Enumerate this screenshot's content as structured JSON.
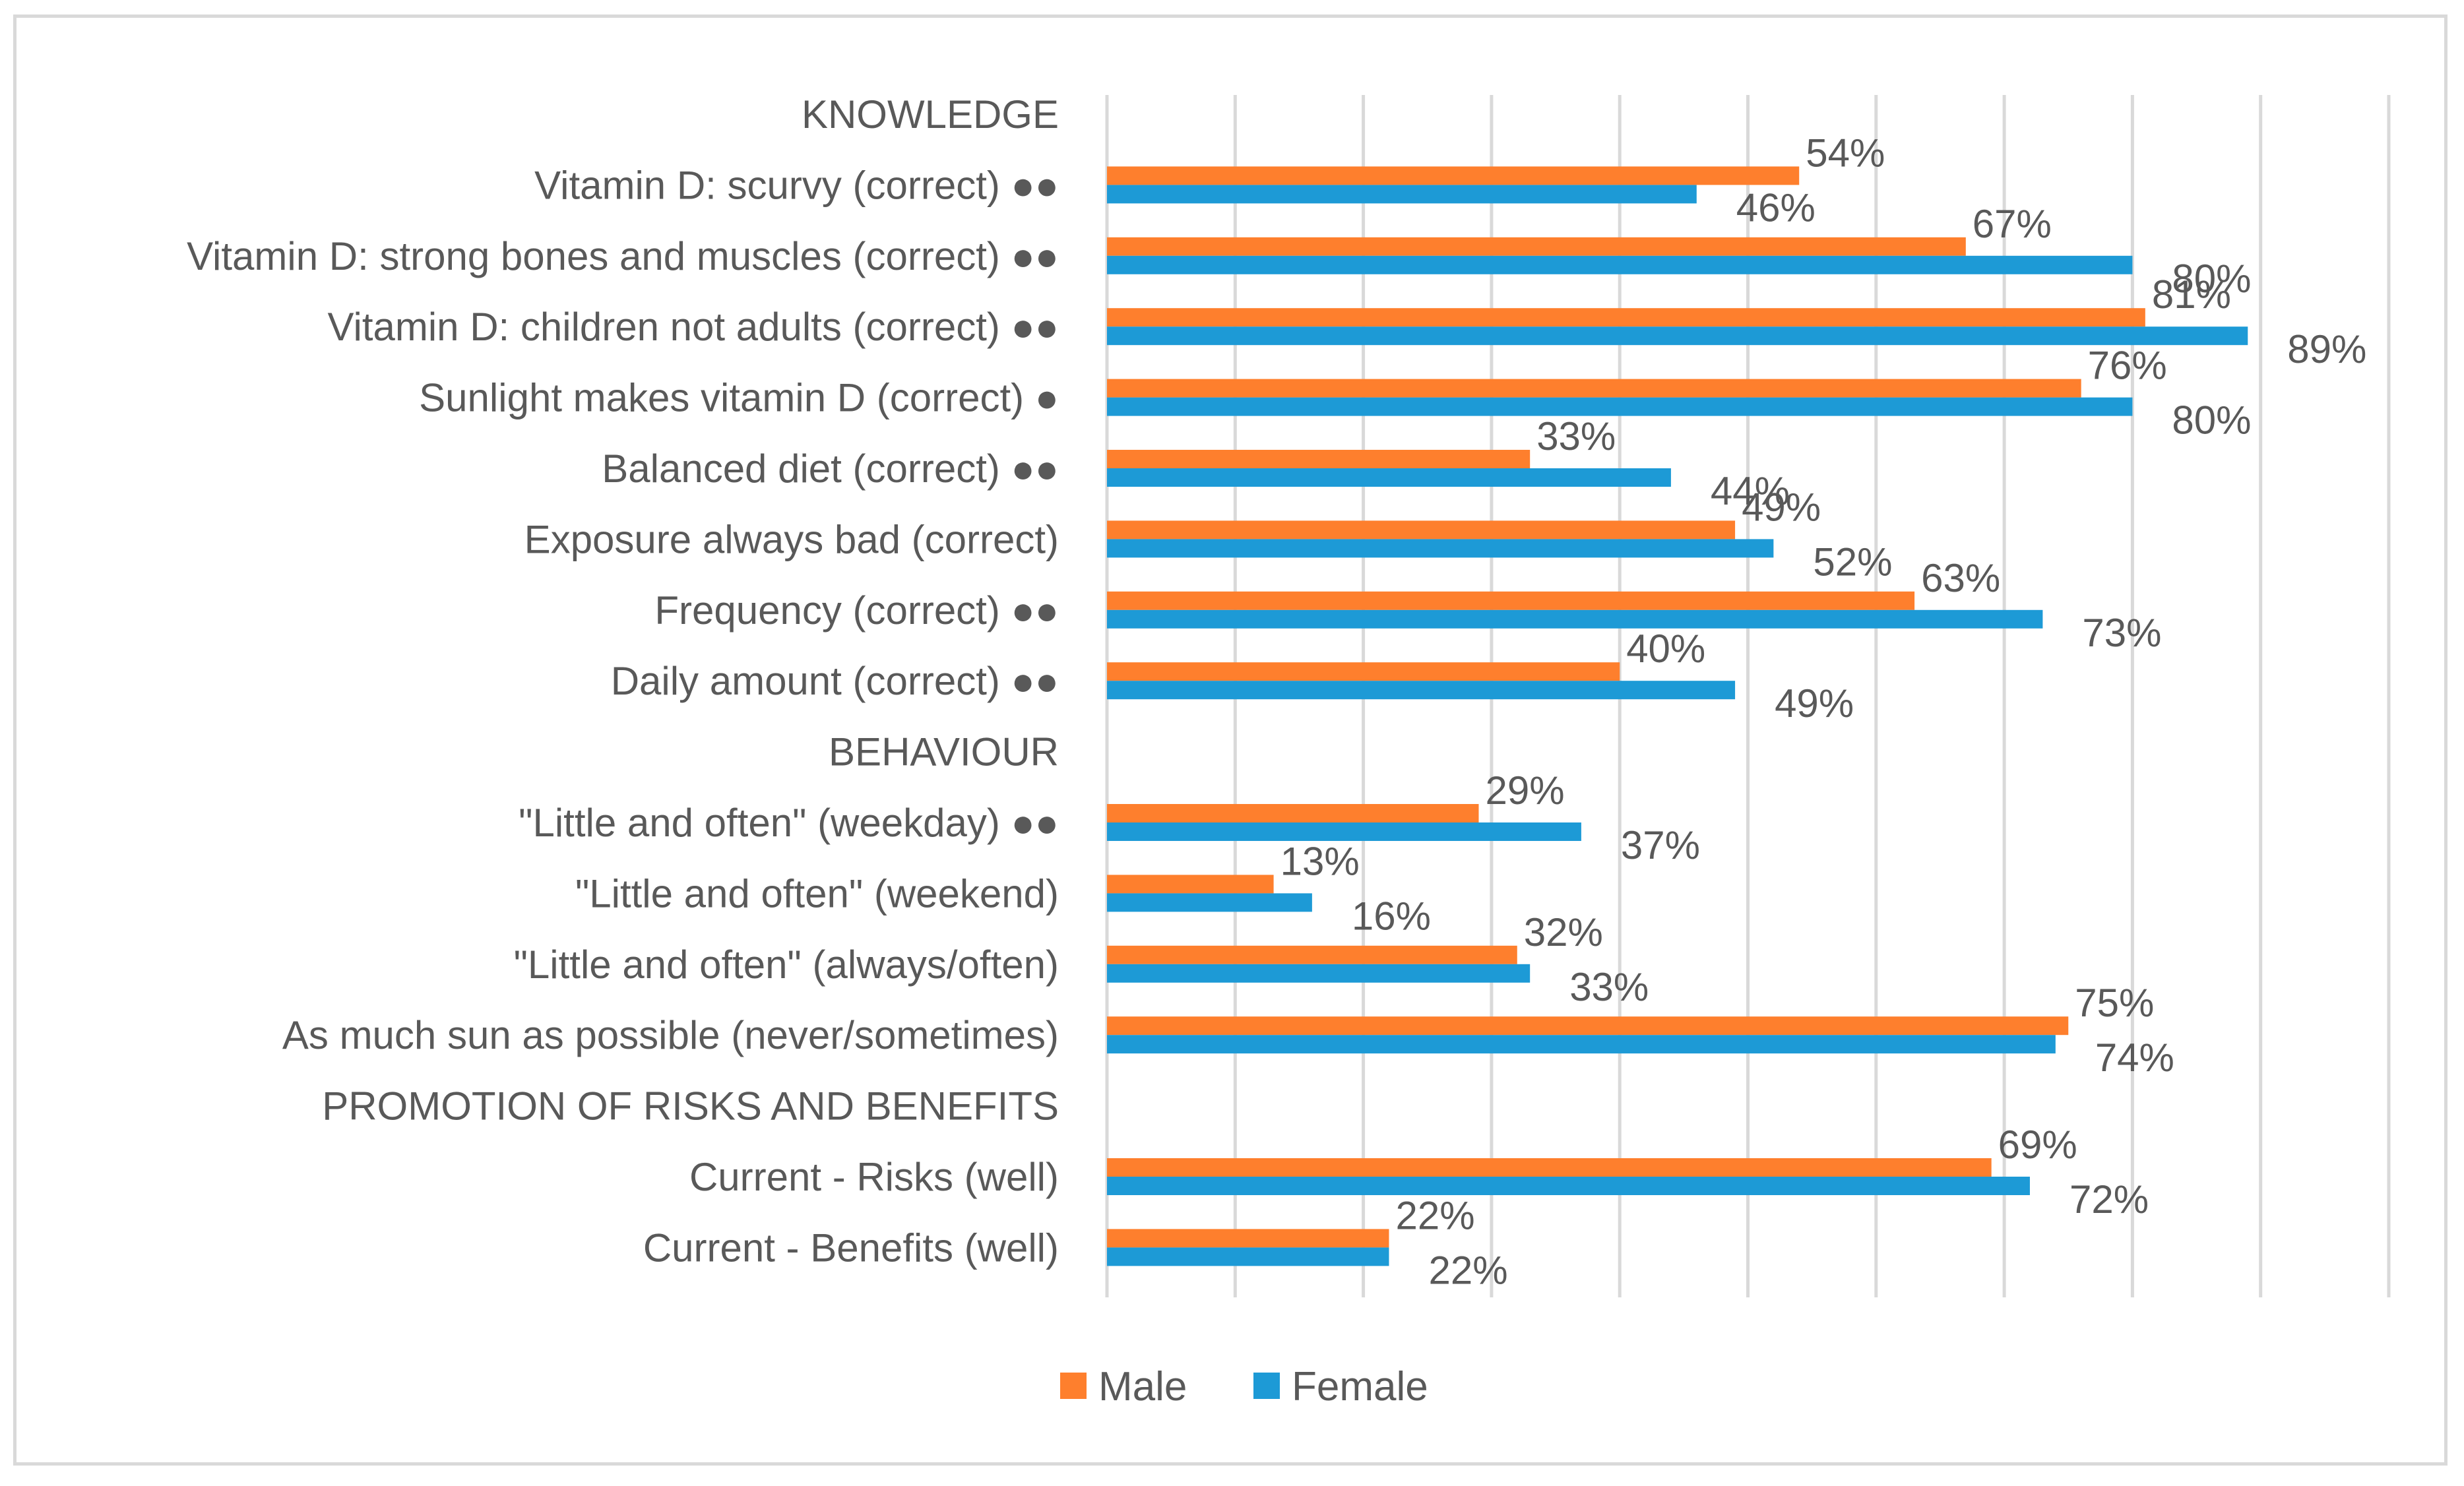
{
  "chart_data": {
    "type": "bar",
    "orientation": "horizontal",
    "title": "",
    "xlabel": "",
    "ylabel": "",
    "xlim": [
      0,
      100
    ],
    "grid": true,
    "legend_position": "bottom",
    "value_suffix": "%",
    "categories": [
      "KNOWLEDGE",
      "Vitamin D: scurvy (correct) ●●",
      "Vitamin D: strong bones and muscles (correct) ●●",
      "Vitamin D: children not adults (correct) ●●",
      "Sunlight makes vitamin D (correct) ●",
      "Balanced diet (correct) ●●",
      "Exposure always bad (correct)",
      "Frequency (correct) ●●",
      "Daily amount (correct) ●●",
      "BEHAVIOUR",
      "\"Little and often\" (weekday) ●●",
      "\"Little and often\" (weekend)",
      "\"Little and often\" (always/often)",
      "As much sun as possible (never/sometimes)",
      "PROMOTION OF RISKS AND BENEFITS",
      "Current - Risks (well)",
      "Current - Benefits (well)"
    ],
    "series": [
      {
        "name": "Male",
        "color": "#fe7f2d",
        "values": [
          null,
          54,
          67,
          81,
          76,
          33,
          49,
          63,
          40,
          null,
          29,
          13,
          32,
          75,
          null,
          69,
          22
        ]
      },
      {
        "name": "Female",
        "color": "#1d9ad6",
        "values": [
          null,
          46,
          80,
          89,
          80,
          44,
          52,
          73,
          49,
          null,
          37,
          16,
          33,
          74,
          null,
          72,
          22
        ]
      }
    ]
  }
}
